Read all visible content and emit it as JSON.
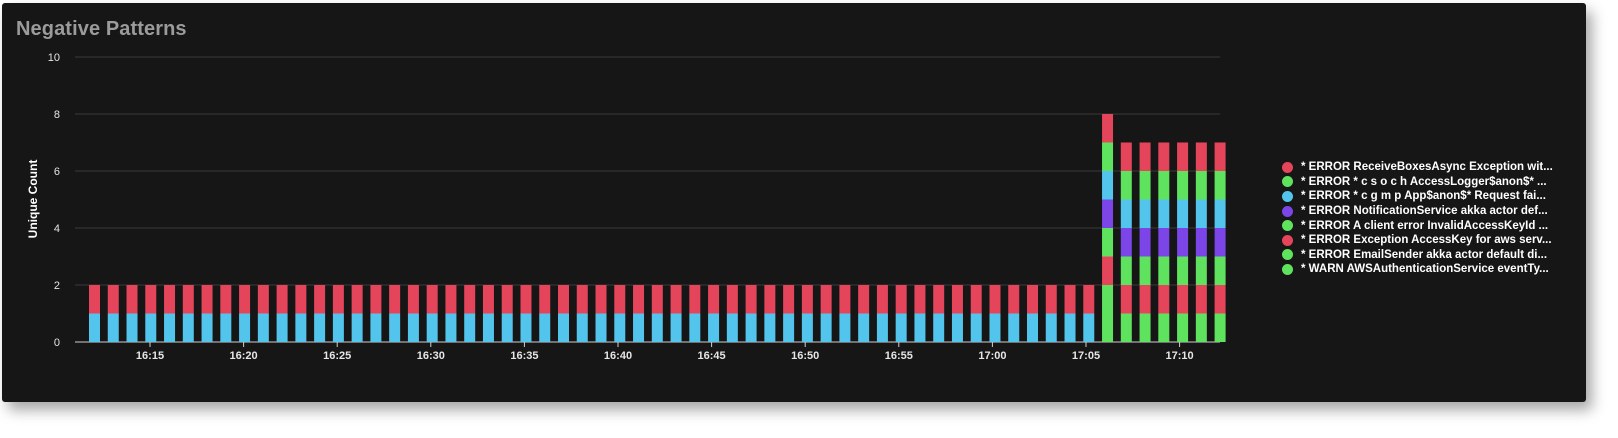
{
  "panel": {
    "title": "Negative Patterns"
  },
  "chart_data": {
    "type": "bar",
    "stacked": true,
    "title": "Negative Patterns",
    "xlabel": "",
    "ylabel": "Unique Count",
    "ylim": [
      0,
      10
    ],
    "yticks": [
      0,
      2,
      4,
      6,
      8,
      10
    ],
    "grid": true,
    "legend_position": "right",
    "x_tick_labels": [
      "16:15",
      "16:20",
      "16:25",
      "16:30",
      "16:35",
      "16:40",
      "16:45",
      "16:50",
      "16:55",
      "17:00",
      "17:05",
      "17:10"
    ],
    "series": [
      {
        "name": "* WARN AWSAuthenticationService eventTy...",
        "color": "#5fe35f"
      },
      {
        "name": "* ERROR EmailSender akka actor default di...",
        "color": "#5fe35f"
      },
      {
        "name": "* ERROR Exception AccessKey for aws serv...",
        "color": "#e5455a"
      },
      {
        "name": "* ERROR A client error InvalidAccessKeyId ...",
        "color": "#5fe35f"
      },
      {
        "name": "* ERROR NotificationService akka actor def...",
        "color": "#7b45e8"
      },
      {
        "name": "* ERROR * c g m p App$anon$* Request fai...",
        "color": "#53c4ec"
      },
      {
        "name": "* ERROR * c s o c h AccessLogger$anon$* ...",
        "color": "#5fe35f"
      },
      {
        "name": "* ERROR ReceiveBoxesAsync Exception wit...",
        "color": "#e5455a"
      }
    ],
    "bars": [
      {
        "segments": [
          [
            "#53c4ec",
            1
          ],
          [
            "#e5455a",
            1
          ]
        ],
        "repeat": 54
      },
      {
        "segments": [
          [
            "#5fe35f",
            2
          ],
          [
            "#e5455a",
            1
          ],
          [
            "#5fe35f",
            1
          ],
          [
            "#7b45e8",
            1
          ],
          [
            "#53c4ec",
            1
          ],
          [
            "#5fe35f",
            1
          ],
          [
            "#e5455a",
            1
          ]
        ],
        "repeat": 1
      },
      {
        "segments": [
          [
            "#5fe35f",
            1
          ],
          [
            "#e5455a",
            1
          ],
          [
            "#5fe35f",
            1
          ],
          [
            "#7b45e8",
            1
          ],
          [
            "#53c4ec",
            1
          ],
          [
            "#5fe35f",
            1
          ],
          [
            "#e5455a",
            1
          ]
        ],
        "repeat": 6
      }
    ]
  },
  "legend": [
    {
      "label": "* ERROR ReceiveBoxesAsync Exception wit...",
      "color": "#e5455a"
    },
    {
      "label": "* ERROR * c s o c h AccessLogger$anon$* ...",
      "color": "#5fe35f"
    },
    {
      "label": "* ERROR * c g m p App$anon$* Request fai...",
      "color": "#53c4ec"
    },
    {
      "label": "* ERROR NotificationService akka actor def...",
      "color": "#7b45e8"
    },
    {
      "label": "* ERROR A client error InvalidAccessKeyId ...",
      "color": "#5fe35f"
    },
    {
      "label": "* ERROR Exception AccessKey for aws serv...",
      "color": "#e5455a"
    },
    {
      "label": "* ERROR EmailSender akka actor default di...",
      "color": "#5fe35f"
    },
    {
      "label": "* WARN AWSAuthenticationService eventTy...",
      "color": "#5fe35f"
    }
  ]
}
